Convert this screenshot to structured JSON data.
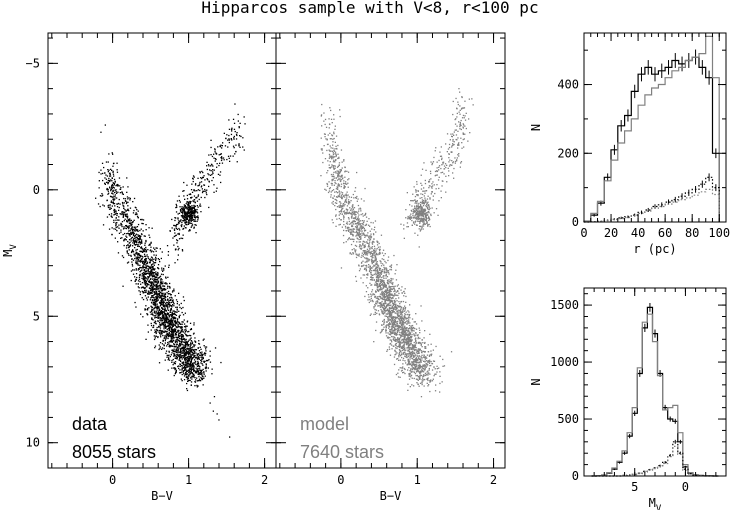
{
  "figure": {
    "title": "Hipparcos sample with V<8, r<100 pc"
  },
  "chart_data": [
    {
      "id": "cmd-data",
      "type": "scatter",
      "xlabel": "B−V",
      "ylabel": "M",
      "ylabel_sub": "V",
      "xlim": [
        -0.85,
        2.15
      ],
      "ylim": [
        -6.2,
        11.0
      ],
      "y_inverted": true,
      "xticks": [
        0,
        1,
        2
      ],
      "yticks": [
        -5,
        0,
        5,
        10
      ],
      "yticks_labels": [
        "−5",
        "0",
        "5",
        "10"
      ],
      "color": "#000000",
      "annotation": [
        "data",
        "8055 stars"
      ],
      "distribution": {
        "main_sequence": [
          [
            -0.1,
            -1.0
          ],
          [
            0.0,
            0.3
          ],
          [
            0.2,
            1.4
          ],
          [
            0.35,
            2.4
          ],
          [
            0.5,
            3.5
          ],
          [
            0.6,
            4.3
          ],
          [
            0.7,
            5.0
          ],
          [
            0.8,
            5.7
          ],
          [
            0.95,
            6.5
          ],
          [
            1.1,
            7.2
          ]
        ],
        "red_clump": [
          1.0,
          0.9
        ],
        "giant_branch": [
          [
            0.8,
            2.2
          ],
          [
            0.9,
            1.2
          ],
          [
            1.05,
            0.2
          ],
          [
            1.3,
            -0.8
          ],
          [
            1.55,
            -1.8
          ],
          [
            1.65,
            -2.5
          ]
        ],
        "faint_tail": [
          [
            1.25,
            8.2
          ],
          [
            1.4,
            9.0
          ],
          [
            1.55,
            10.3
          ]
        ]
      }
    },
    {
      "id": "cmd-model",
      "type": "scatter",
      "xlabel": "B−V",
      "xlim": [
        -0.85,
        2.15
      ],
      "ylim": [
        -6.2,
        11.0
      ],
      "y_inverted": true,
      "xticks": [
        0,
        1,
        2
      ],
      "color": "#808080",
      "annotation": [
        "model",
        "7640 stars"
      ],
      "distribution": {
        "main_sequence": [
          [
            -0.2,
            -3.0
          ],
          [
            -0.1,
            -1.0
          ],
          [
            0.0,
            0.3
          ],
          [
            0.2,
            1.4
          ],
          [
            0.35,
            2.4
          ],
          [
            0.5,
            3.5
          ],
          [
            0.6,
            4.3
          ],
          [
            0.7,
            5.0
          ],
          [
            0.8,
            5.7
          ],
          [
            0.95,
            6.5
          ],
          [
            1.1,
            7.4
          ]
        ],
        "red_clump": [
          1.05,
          0.9
        ],
        "giant_branch": [
          [
            0.9,
            1.2
          ],
          [
            1.05,
            0.3
          ],
          [
            1.3,
            -0.8
          ],
          [
            1.5,
            -1.8
          ],
          [
            1.6,
            -3.5
          ]
        ]
      }
    },
    {
      "id": "hist-distance",
      "type": "line",
      "xlabel": "r (pc)",
      "ylabel": "N",
      "xlim": [
        0,
        105
      ],
      "ylim": [
        0,
        550
      ],
      "xticks": [
        0,
        20,
        40,
        60,
        80,
        100
      ],
      "yticks": [
        0,
        200,
        400
      ],
      "bins": [
        0,
        5,
        10,
        15,
        20,
        25,
        30,
        35,
        40,
        45,
        50,
        55,
        60,
        65,
        70,
        75,
        80,
        85,
        90,
        95
      ],
      "bin_width": 5,
      "series": [
        {
          "color": "#000000",
          "style": "solid",
          "errorbars": true,
          "values": [
            2,
            20,
            55,
            130,
            210,
            280,
            310,
            380,
            430,
            450,
            430,
            440,
            450,
            470,
            460,
            470,
            480,
            450,
            420,
            200
          ]
        },
        {
          "color": "#808080",
          "style": "solid",
          "errorbars": false,
          "values": [
            3,
            25,
            60,
            120,
            180,
            230,
            265,
            300,
            340,
            370,
            390,
            400,
            420,
            440,
            450,
            470,
            480,
            490,
            540,
            420
          ]
        },
        {
          "color": "#000000",
          "style": "dotted",
          "errorbars": true,
          "values": [
            0,
            1,
            2,
            5,
            8,
            12,
            15,
            20,
            28,
            35,
            45,
            50,
            58,
            65,
            75,
            85,
            95,
            110,
            130,
            100
          ]
        },
        {
          "color": "#808080",
          "style": "dotted",
          "errorbars": false,
          "values": [
            0,
            1,
            2,
            4,
            7,
            10,
            13,
            18,
            25,
            32,
            40,
            45,
            52,
            58,
            65,
            70,
            78,
            88,
            95,
            80
          ]
        }
      ]
    },
    {
      "id": "hist-mv",
      "type": "line",
      "xlabel": "M",
      "xlabel_sub": "V",
      "ylabel": "N",
      "xlim": [
        10,
        -4
      ],
      "ylim": [
        0,
        1650
      ],
      "xticks": [
        5,
        0
      ],
      "yticks": [
        0,
        500,
        1000,
        1500
      ],
      "bins": [
        9,
        8.5,
        8,
        7.5,
        7,
        6.5,
        6,
        5.5,
        5,
        4.5,
        4,
        3.5,
        3,
        2.5,
        2,
        1.5,
        1,
        0.5,
        0,
        -0.5,
        -1,
        -1.5,
        -2,
        -2.5,
        -3
      ],
      "bin_width": 0.5,
      "series": [
        {
          "color": "#000000",
          "style": "solid",
          "errorbars": true,
          "values": [
            0,
            2,
            8,
            25,
            60,
            120,
            200,
            350,
            550,
            900,
            1300,
            1480,
            1250,
            900,
            600,
            500,
            480,
            300,
            80,
            25,
            10,
            4,
            2,
            1,
            0
          ]
        },
        {
          "color": "#808080",
          "style": "solid",
          "errorbars": false,
          "values": [
            0,
            3,
            10,
            30,
            70,
            130,
            220,
            380,
            600,
            950,
            1350,
            1420,
            1180,
            880,
            580,
            600,
            620,
            380,
            100,
            30,
            12,
            5,
            2,
            1,
            0
          ]
        },
        {
          "color": "#000000",
          "style": "dotted",
          "errorbars": true,
          "values": [
            0,
            0,
            0,
            0,
            0,
            0,
            5,
            10,
            15,
            25,
            40,
            55,
            70,
            90,
            120,
            180,
            300,
            200,
            60,
            20,
            5,
            2,
            0,
            0,
            0
          ]
        },
        {
          "color": "#808080",
          "style": "dotted",
          "errorbars": false,
          "values": [
            0,
            0,
            0,
            0,
            0,
            0,
            4,
            8,
            12,
            20,
            35,
            50,
            65,
            80,
            110,
            170,
            260,
            190,
            50,
            15,
            4,
            1,
            0,
            0,
            0
          ]
        }
      ]
    }
  ]
}
